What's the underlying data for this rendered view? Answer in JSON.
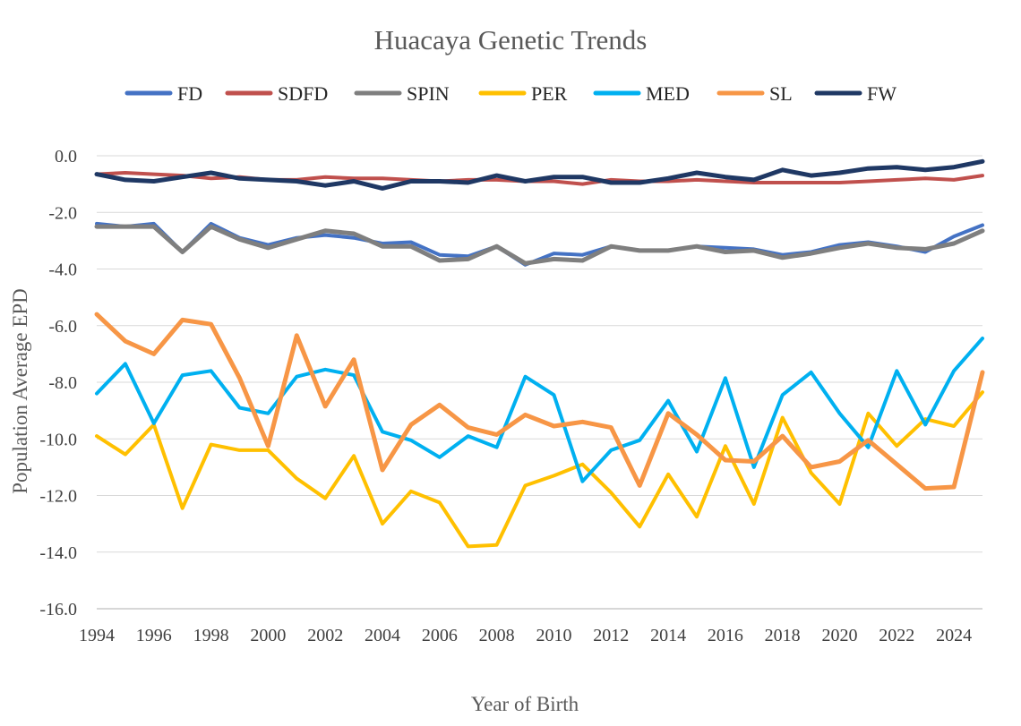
{
  "chart_data": {
    "type": "line",
    "title": "Huacaya Genetic Trends",
    "xlabel": "Year of Birth",
    "ylabel": "Population Average EPD",
    "xlim": [
      1994,
      2025
    ],
    "ylim": [
      -16,
      0
    ],
    "x_ticks": [
      1994,
      1996,
      1998,
      2000,
      2002,
      2004,
      2006,
      2008,
      2010,
      2012,
      2014,
      2016,
      2018,
      2020,
      2022,
      2024
    ],
    "y_ticks": [
      0,
      -2,
      -4,
      -6,
      -8,
      -10,
      -12,
      -14,
      -16
    ],
    "y_tick_labels": [
      "0.0",
      "-2.0",
      "-4.0",
      "-6.0",
      "-8.0",
      "-10.0",
      "-12.0",
      "-14.0",
      "-16.0"
    ],
    "grid": true,
    "legend_position": "top",
    "x": [
      1994,
      1995,
      1996,
      1997,
      1998,
      1999,
      2000,
      2001,
      2002,
      2003,
      2004,
      2005,
      2006,
      2007,
      2008,
      2009,
      2010,
      2011,
      2012,
      2013,
      2014,
      2015,
      2016,
      2017,
      2018,
      2019,
      2020,
      2021,
      2022,
      2023,
      2024,
      2025
    ],
    "series": [
      {
        "name": "FD",
        "color": "#4472C4",
        "stroke_width": 4,
        "values": [
          -2.4,
          -2.5,
          -2.4,
          -3.4,
          -2.4,
          -2.9,
          -3.15,
          -2.9,
          -2.8,
          -2.9,
          -3.1,
          -3.05,
          -3.5,
          -3.55,
          -3.2,
          -3.85,
          -3.45,
          -3.5,
          -3.2,
          -3.35,
          -3.35,
          -3.2,
          -3.25,
          -3.3,
          -3.5,
          -3.4,
          -3.15,
          -3.05,
          -3.2,
          -3.4,
          -2.85,
          -2.45
        ]
      },
      {
        "name": "SDFD",
        "color": "#C0504D",
        "stroke_width": 4,
        "values": [
          -0.65,
          -0.6,
          -0.65,
          -0.7,
          -0.8,
          -0.75,
          -0.85,
          -0.85,
          -0.75,
          -0.8,
          -0.8,
          -0.85,
          -0.9,
          -0.85,
          -0.85,
          -0.9,
          -0.9,
          -1.0,
          -0.85,
          -0.9,
          -0.9,
          -0.85,
          -0.9,
          -0.95,
          -0.95,
          -0.95,
          -0.95,
          -0.9,
          -0.85,
          -0.8,
          -0.85,
          -0.7
        ]
      },
      {
        "name": "SPIN",
        "color": "#7F7F7F",
        "stroke_width": 5,
        "values": [
          -2.5,
          -2.5,
          -2.5,
          -3.4,
          -2.5,
          -2.95,
          -3.25,
          -2.95,
          -2.65,
          -2.75,
          -3.2,
          -3.2,
          -3.7,
          -3.65,
          -3.2,
          -3.8,
          -3.65,
          -3.7,
          -3.2,
          -3.35,
          -3.35,
          -3.2,
          -3.4,
          -3.35,
          -3.6,
          -3.45,
          -3.25,
          -3.1,
          -3.25,
          -3.3,
          -3.1,
          -2.65
        ]
      },
      {
        "name": "PER",
        "color": "#FFC000",
        "stroke_width": 4,
        "values": [
          -9.9,
          -10.55,
          -9.5,
          -12.45,
          -10.2,
          -10.4,
          -10.4,
          -11.4,
          -12.1,
          -10.6,
          -13.0,
          -11.85,
          -12.25,
          -13.8,
          -13.75,
          -11.65,
          -11.3,
          -10.9,
          -11.9,
          -13.1,
          -11.25,
          -12.75,
          -10.25,
          -12.3,
          -9.25,
          -11.2,
          -12.3,
          -9.1,
          -10.25,
          -9.3,
          -9.55,
          -8.35
        ]
      },
      {
        "name": "MED",
        "color": "#00B0F0",
        "stroke_width": 4,
        "values": [
          -8.4,
          -7.35,
          -9.45,
          -7.75,
          -7.6,
          -8.9,
          -9.1,
          -7.8,
          -7.55,
          -7.75,
          -9.75,
          -10.05,
          -10.65,
          -9.9,
          -10.3,
          -7.8,
          -8.45,
          -11.5,
          -10.4,
          -10.05,
          -8.65,
          -10.45,
          -7.85,
          -11.0,
          -8.45,
          -7.65,
          -9.1,
          -10.3,
          -7.6,
          -9.5,
          -7.6,
          -6.45
        ]
      },
      {
        "name": "SL",
        "color": "#F79646",
        "stroke_width": 5,
        "values": [
          -5.6,
          -6.55,
          -7.0,
          -5.8,
          -5.95,
          -7.85,
          -10.25,
          -6.35,
          -8.85,
          -7.2,
          -11.1,
          -9.5,
          -8.8,
          -9.6,
          -9.85,
          -9.15,
          -9.55,
          -9.4,
          -9.6,
          -11.65,
          -9.1,
          -9.85,
          -10.75,
          -10.8,
          -9.9,
          -11.0,
          -10.8,
          -10.05,
          -10.9,
          -11.75,
          -11.7,
          -7.65
        ]
      },
      {
        "name": "FW",
        "color": "#1F3864",
        "stroke_width": 5,
        "values": [
          -0.65,
          -0.85,
          -0.9,
          -0.75,
          -0.6,
          -0.8,
          -0.85,
          -0.9,
          -1.05,
          -0.9,
          -1.15,
          -0.9,
          -0.9,
          -0.95,
          -0.7,
          -0.9,
          -0.75,
          -0.75,
          -0.95,
          -0.95,
          -0.8,
          -0.6,
          -0.75,
          -0.85,
          -0.5,
          -0.7,
          -0.6,
          -0.45,
          -0.4,
          -0.5,
          -0.4,
          -0.2
        ]
      }
    ]
  }
}
